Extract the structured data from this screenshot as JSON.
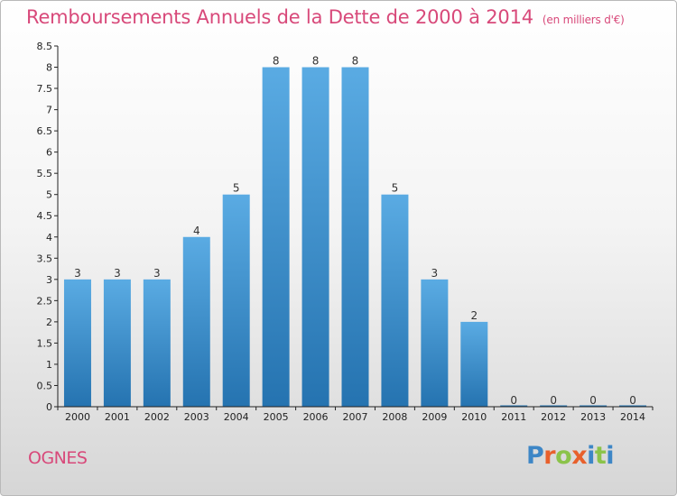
{
  "header": {
    "title": "Remboursements Annuels de la Dette de 2000 à 2014",
    "unit": "(en milliers d'€)"
  },
  "footer": {
    "commune": "OGNES",
    "logo_text": "Proxiti"
  },
  "colors": {
    "title": "#d8497a",
    "bar_light": "#5aabe3",
    "bar_dark": "#2573b0",
    "logo_letters": [
      "#3d86c6",
      "#e8602c",
      "#8bc34a",
      "#e8602c",
      "#3d86c6",
      "#8bc34a",
      "#3d86c6"
    ]
  },
  "chart_data": {
    "type": "bar",
    "title": "Remboursements Annuels de la Dette de 2000 à 2014",
    "subtitle": "(en milliers d'€)",
    "xlabel": "",
    "ylabel": "",
    "categories": [
      "2000",
      "2001",
      "2002",
      "2003",
      "2004",
      "2005",
      "2006",
      "2007",
      "2008",
      "2009",
      "2010",
      "2011",
      "2012",
      "2013",
      "2014"
    ],
    "values": [
      3,
      3,
      3,
      4,
      5,
      8,
      8,
      8,
      5,
      3,
      2,
      0,
      0,
      0,
      0
    ],
    "data_labels": [
      "3",
      "3",
      "3",
      "4",
      "5",
      "8",
      "8",
      "8",
      "5",
      "3",
      "2",
      "0",
      "0",
      "0",
      "0"
    ],
    "ylim": [
      0,
      8.5
    ],
    "yticks": [
      0,
      0.5,
      1,
      1.5,
      2,
      2.5,
      3,
      3.5,
      4,
      4.5,
      5,
      5.5,
      6,
      6.5,
      7,
      7.5,
      8,
      8.5
    ],
    "ytick_labels": [
      "0",
      "0.5",
      "1",
      "1.5",
      "2",
      "2.5",
      "3",
      "3.5",
      "4",
      "4.5",
      "5",
      "5.5",
      "6",
      "6.5",
      "7",
      "7.5",
      "8",
      "8.5"
    ],
    "grid": false
  }
}
